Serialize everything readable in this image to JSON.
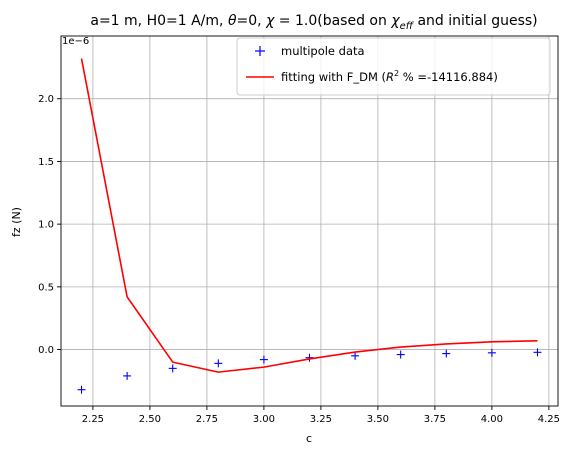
{
  "chart_data": {
    "type": "line",
    "title_parts": [
      "a=1 m, H0=1 A/m, ",
      "θ",
      "=0, ",
      "χ",
      " = 1.0(based on ",
      "χ",
      "eff",
      " and initial guess)"
    ],
    "xlabel": "c",
    "ylabel": "fz (N)",
    "y_offset_label": "1e−6",
    "xlim": [
      2.11,
      4.29
    ],
    "ylim": [
      -0.45,
      2.5
    ],
    "xticks": [
      2.25,
      2.5,
      2.75,
      3.0,
      3.25,
      3.5,
      3.75,
      4.0,
      4.25
    ],
    "xtick_labels": [
      "2.25",
      "2.50",
      "2.75",
      "3.00",
      "3.25",
      "3.50",
      "3.75",
      "4.00",
      "4.25"
    ],
    "yticks": [
      0.0,
      0.5,
      1.0,
      1.5,
      2.0
    ],
    "ytick_labels": [
      "0.0",
      "0.5",
      "1.0",
      "1.5",
      "2.0"
    ],
    "grid": true,
    "legend_position": "top-right",
    "series": [
      {
        "name": "multipole data",
        "style": "marker",
        "marker": "plus",
        "color": "#0000ff",
        "x": [
          2.2,
          2.4,
          2.6,
          2.8,
          3.0,
          3.2,
          3.4,
          3.6,
          3.8,
          4.0,
          4.2
        ],
        "y": [
          -0.32,
          -0.21,
          -0.15,
          -0.11,
          -0.08,
          -0.065,
          -0.05,
          -0.04,
          -0.032,
          -0.026,
          -0.022
        ]
      },
      {
        "name_prefix": "fitting with F_DM (",
        "name_r": "R",
        "name_sup": "2",
        "name_suffix": " % =-14116.884)",
        "style": "line",
        "color": "#ff0000",
        "x": [
          2.2,
          2.4,
          2.6,
          2.8,
          3.0,
          3.2,
          3.4,
          3.6,
          3.8,
          4.0,
          4.2
        ],
        "y": [
          2.32,
          0.42,
          -0.1,
          -0.18,
          -0.14,
          -0.075,
          -0.02,
          0.02,
          0.045,
          0.062,
          0.07
        ]
      }
    ]
  }
}
